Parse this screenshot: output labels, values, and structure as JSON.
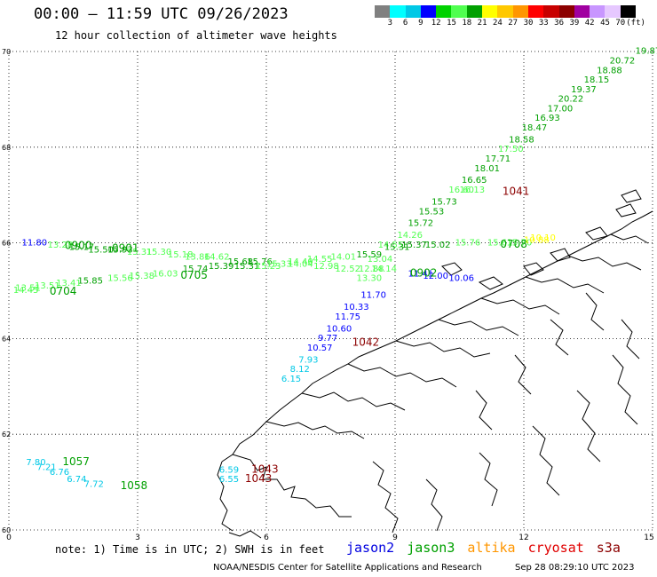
{
  "header": {
    "title": "00:00 – 11:59 UTC 09/26/2023",
    "subtitle": "12 hour collection of altimeter wave heights"
  },
  "colorbar": {
    "swatches": [
      "#808080",
      "#00ffff",
      "#00c8e6",
      "#0000ff",
      "#00d200",
      "#50ff50",
      "#00a000",
      "#ffff00",
      "#ffc800",
      "#ff9600",
      "#ff0000",
      "#c80000",
      "#8c0000",
      "#a000a0",
      "#c896ff",
      "#e6c8ff",
      "#000000"
    ],
    "ticks": [
      "3",
      "6",
      "9",
      "12",
      "15",
      "18",
      "21",
      "24",
      "27",
      "30",
      "33",
      "36",
      "39",
      "42",
      "45",
      "70",
      "(ft)"
    ]
  },
  "map": {
    "lon_ticks": [
      "0",
      "3",
      "6",
      "9",
      "12",
      "15"
    ],
    "lat_ticks": [
      "70",
      "68",
      "66",
      "64",
      "62",
      "60"
    ],
    "lon_range": [
      0,
      15
    ],
    "lat_range": [
      60,
      70
    ],
    "grid": true
  },
  "observations": [
    {
      "lon": 14.6,
      "lat": 69.95,
      "label": "19.87",
      "color": "#00a000"
    },
    {
      "lon": 14.0,
      "lat": 69.75,
      "label": "20.72",
      "color": "#00a000"
    },
    {
      "lon": 13.7,
      "lat": 69.55,
      "label": "18.88",
      "color": "#00a000"
    },
    {
      "lon": 13.4,
      "lat": 69.35,
      "label": "18.15",
      "color": "#00a000"
    },
    {
      "lon": 13.1,
      "lat": 69.15,
      "label": "19.37",
      "color": "#00a000"
    },
    {
      "lon": 12.8,
      "lat": 68.95,
      "label": "20.22",
      "color": "#00a000"
    },
    {
      "lon": 12.55,
      "lat": 68.75,
      "label": "17.00",
      "color": "#00a000"
    },
    {
      "lon": 12.25,
      "lat": 68.55,
      "label": "16.93",
      "color": "#00a000"
    },
    {
      "lon": 11.95,
      "lat": 68.35,
      "label": "18.47",
      "color": "#00a000"
    },
    {
      "lon": 11.65,
      "lat": 68.1,
      "label": "18.58",
      "color": "#00a000"
    },
    {
      "lon": 11.4,
      "lat": 67.9,
      "label": "17.50",
      "color": "#50ff50"
    },
    {
      "lon": 11.1,
      "lat": 67.7,
      "label": "17.71",
      "color": "#00a000"
    },
    {
      "lon": 10.85,
      "lat": 67.5,
      "label": "18.01",
      "color": "#00a000"
    },
    {
      "lon": 10.55,
      "lat": 67.25,
      "label": "16.65",
      "color": "#00a000"
    },
    {
      "lon": 10.25,
      "lat": 67.05,
      "label": "16.60",
      "color": "#50ff50"
    },
    {
      "lon": 10.5,
      "lat": 67.05,
      "label": "16.13",
      "color": "#50ff50"
    },
    {
      "lon": 9.85,
      "lat": 66.8,
      "label": "15.73",
      "color": "#00a000"
    },
    {
      "lon": 9.55,
      "lat": 66.6,
      "label": "15.53",
      "color": "#00a000"
    },
    {
      "lon": 9.3,
      "lat": 66.35,
      "label": "15.72",
      "color": "#00a000"
    },
    {
      "lon": 9.05,
      "lat": 66.1,
      "label": "14.26",
      "color": "#50ff50"
    },
    {
      "lon": 8.6,
      "lat": 65.9,
      "label": "14.55",
      "color": "#50ff50"
    },
    {
      "lon": 8.75,
      "lat": 65.85,
      "label": "15.31",
      "color": "#00a000"
    },
    {
      "lon": 9.15,
      "lat": 65.9,
      "label": "15.37",
      "color": "#00a000"
    },
    {
      "lon": 9.7,
      "lat": 65.9,
      "label": "15.02",
      "color": "#00a000"
    },
    {
      "lon": 10.4,
      "lat": 65.95,
      "label": "15.76",
      "color": "#50ff50"
    },
    {
      "lon": 11.15,
      "lat": 65.95,
      "label": "15.61",
      "color": "#50ff50"
    },
    {
      "lon": 11.6,
      "lat": 65.95,
      "label": "15.70",
      "color": "#50ff50"
    },
    {
      "lon": 12.0,
      "lat": 66.0,
      "label": "10.88",
      "color": "#ffff00"
    },
    {
      "lon": 12.15,
      "lat": 66.05,
      "label": "10.10",
      "color": "#ffff00"
    },
    {
      "lon": 8.35,
      "lat": 65.6,
      "label": "13.04",
      "color": "#50ff50"
    },
    {
      "lon": 8.15,
      "lat": 65.4,
      "label": "12.88",
      "color": "#50ff50"
    },
    {
      "lon": 8.45,
      "lat": 65.4,
      "label": "14.14",
      "color": "#50ff50"
    },
    {
      "lon": 8.1,
      "lat": 65.2,
      "label": "13.30",
      "color": "#50ff50"
    },
    {
      "lon": 8.2,
      "lat": 64.85,
      "label": "11.70",
      "color": "#0000ff"
    },
    {
      "lon": 7.8,
      "lat": 64.6,
      "label": "10.33",
      "color": "#0000ff"
    },
    {
      "lon": 7.6,
      "lat": 64.4,
      "label": "11.75",
      "color": "#0000ff"
    },
    {
      "lon": 7.4,
      "lat": 64.15,
      "label": "10.60",
      "color": "#0000ff"
    },
    {
      "lon": 7.2,
      "lat": 63.95,
      "label": "9.77",
      "color": "#0000ff"
    },
    {
      "lon": 6.95,
      "lat": 63.75,
      "label": "10.57",
      "color": "#0000ff"
    },
    {
      "lon": 6.75,
      "lat": 63.5,
      "label": "7.93",
      "color": "#00c8e6"
    },
    {
      "lon": 6.55,
      "lat": 63.3,
      "label": "8.12",
      "color": "#00c8e6"
    },
    {
      "lon": 6.35,
      "lat": 63.1,
      "label": "6.15",
      "color": "#00c8e6"
    },
    {
      "lon": 9.3,
      "lat": 65.3,
      "label": "11.41",
      "color": "#0000ff"
    },
    {
      "lon": 9.65,
      "lat": 65.25,
      "label": "12.00",
      "color": "#0000ff"
    },
    {
      "lon": 10.25,
      "lat": 65.2,
      "label": "10.06",
      "color": "#0000ff"
    },
    {
      "lon": 0.3,
      "lat": 65.95,
      "label": "11.80",
      "color": "#0000ff"
    },
    {
      "lon": 0.9,
      "lat": 65.9,
      "label": "13.28",
      "color": "#50ff50"
    },
    {
      "lon": 1.4,
      "lat": 65.85,
      "label": "15.17",
      "color": "#00a000"
    },
    {
      "lon": 1.85,
      "lat": 65.8,
      "label": "15.50",
      "color": "#00a000"
    },
    {
      "lon": 2.3,
      "lat": 65.8,
      "label": "15.93",
      "color": "#00a000"
    },
    {
      "lon": 2.75,
      "lat": 65.75,
      "label": "15.31",
      "color": "#50ff50"
    },
    {
      "lon": 3.2,
      "lat": 65.75,
      "label": "15.30",
      "color": "#50ff50"
    },
    {
      "lon": 3.7,
      "lat": 65.7,
      "label": "15.18",
      "color": "#50ff50"
    },
    {
      "lon": 4.1,
      "lat": 65.65,
      "label": "13.86",
      "color": "#50ff50"
    },
    {
      "lon": 4.55,
      "lat": 65.65,
      "label": "14.62",
      "color": "#50ff50"
    },
    {
      "lon": 5.1,
      "lat": 65.55,
      "label": "15.68",
      "color": "#00a000"
    },
    {
      "lon": 5.55,
      "lat": 65.55,
      "label": "15.76",
      "color": "#00a000"
    },
    {
      "lon": 6.0,
      "lat": 65.5,
      "label": "15.33",
      "color": "#50ff50"
    },
    {
      "lon": 6.5,
      "lat": 65.55,
      "label": "14.40",
      "color": "#50ff50"
    },
    {
      "lon": 6.95,
      "lat": 65.6,
      "label": "14.55",
      "color": "#50ff50"
    },
    {
      "lon": 7.5,
      "lat": 65.65,
      "label": "14.01",
      "color": "#50ff50"
    },
    {
      "lon": 8.1,
      "lat": 65.7,
      "label": "15.59",
      "color": "#00a000"
    },
    {
      "lon": 6.5,
      "lat": 65.5,
      "label": "14.04",
      "color": "#50ff50"
    },
    {
      "lon": 7.1,
      "lat": 65.45,
      "label": "12.98",
      "color": "#50ff50"
    },
    {
      "lon": 7.6,
      "lat": 65.4,
      "label": "12.52",
      "color": "#50ff50"
    },
    {
      "lon": 5.25,
      "lat": 65.45,
      "label": "15.31",
      "color": "#00a000"
    },
    {
      "lon": 5.75,
      "lat": 65.45,
      "label": "15.23",
      "color": "#50ff50"
    },
    {
      "lon": 4.05,
      "lat": 65.4,
      "label": "15.74",
      "color": "#00a000"
    },
    {
      "lon": 4.65,
      "lat": 65.45,
      "label": "15.39",
      "color": "#00a000"
    },
    {
      "lon": 3.35,
      "lat": 65.3,
      "label": "16.03",
      "color": "#50ff50"
    },
    {
      "lon": 2.8,
      "lat": 65.25,
      "label": "15.38",
      "color": "#50ff50"
    },
    {
      "lon": 2.3,
      "lat": 65.2,
      "label": "15.56",
      "color": "#50ff50"
    },
    {
      "lon": 1.6,
      "lat": 65.15,
      "label": "15.85",
      "color": "#00a000"
    },
    {
      "lon": 1.1,
      "lat": 65.1,
      "label": "13.41",
      "color": "#50ff50"
    },
    {
      "lon": 0.6,
      "lat": 65.05,
      "label": "13.51",
      "color": "#50ff50"
    },
    {
      "lon": 0.15,
      "lat": 65.0,
      "label": "13.51",
      "color": "#50ff50"
    },
    {
      "lon": 0.1,
      "lat": 64.95,
      "label": "14.45",
      "color": "#50ff50"
    },
    {
      "lon": 0.4,
      "lat": 61.35,
      "label": "7.80",
      "color": "#00c8e6"
    },
    {
      "lon": 0.65,
      "lat": 61.25,
      "label": "7.21",
      "color": "#00c8e6"
    },
    {
      "lon": 0.95,
      "lat": 61.15,
      "label": "6.76",
      "color": "#00c8e6"
    },
    {
      "lon": 1.35,
      "lat": 61.0,
      "label": "6.74",
      "color": "#00c8e6"
    },
    {
      "lon": 1.75,
      "lat": 60.9,
      "label": "7.72",
      "color": "#00c8e6"
    },
    {
      "lon": 4.9,
      "lat": 61.2,
      "label": "6.59",
      "color": "#00c8e6"
    },
    {
      "lon": 4.9,
      "lat": 61.0,
      "label": "6.55",
      "color": "#00c8e6"
    }
  ],
  "pass_labels": [
    {
      "lon": 1.3,
      "lat": 65.87,
      "label": "0900",
      "color": "#00a000"
    },
    {
      "lon": 2.4,
      "lat": 65.82,
      "label": "0901",
      "color": "#00a000"
    },
    {
      "lon": 0.95,
      "lat": 64.92,
      "label": "0704",
      "color": "#00a000"
    },
    {
      "lon": 4.0,
      "lat": 65.25,
      "label": "0705",
      "color": "#00a000"
    },
    {
      "lon": 9.35,
      "lat": 65.3,
      "label": "0902",
      "color": "#00a000"
    },
    {
      "lon": 11.45,
      "lat": 65.9,
      "label": "0708",
      "color": "#00a000"
    },
    {
      "lon": 11.5,
      "lat": 67.0,
      "label": "1041",
      "color": "#8c0000"
    },
    {
      "lon": 8.0,
      "lat": 63.85,
      "label": "1042",
      "color": "#8c0000"
    },
    {
      "lon": 1.25,
      "lat": 61.35,
      "label": "1057",
      "color": "#00a000"
    },
    {
      "lon": 2.6,
      "lat": 60.85,
      "label": "1058",
      "color": "#00a000"
    },
    {
      "lon": 5.65,
      "lat": 61.2,
      "label": "1043",
      "color": "#8c0000"
    },
    {
      "lon": 5.5,
      "lat": 61.0,
      "label": "1043",
      "color": "#8c0000"
    }
  ],
  "footer": {
    "note": "note: 1) Time is in UTC; 2) SWH is in feet",
    "missions": [
      {
        "label": "jason2",
        "color": "#0000e0"
      },
      {
        "label": "jason3",
        "color": "#00a000"
      },
      {
        "label": "altika",
        "color": "#ff9600"
      },
      {
        "label": "cryosat",
        "color": "#e00000"
      },
      {
        "label": "s3a",
        "color": "#8c0000"
      }
    ],
    "credit": "NOAA/NESDIS Center for Satellite Applications and Research",
    "timestamp": "Sep 28 08:29:10 UTC 2023"
  }
}
